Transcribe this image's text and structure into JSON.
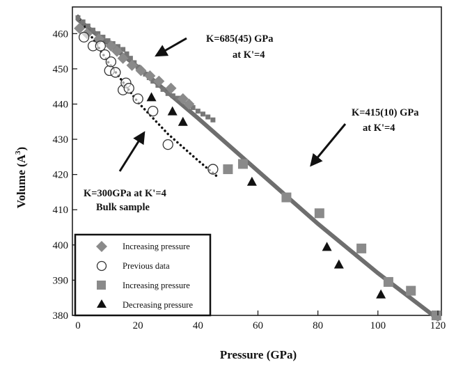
{
  "chart_data": {
    "type": "scatter",
    "xlabel": "Pressure (GPa)",
    "ylabel": "Volume (A",
    "ylabel_sup": "3",
    "ylabel_suffix": ")",
    "xlim": [
      0,
      120
    ],
    "ylim": [
      380,
      465
    ],
    "x_ticks": [
      0,
      20,
      40,
      60,
      80,
      100,
      120
    ],
    "y_ticks": [
      380,
      390,
      400,
      410,
      420,
      430,
      440,
      450,
      460
    ],
    "grid": false,
    "legend_position": "bottom-left",
    "series": [
      {
        "name": "Increasing pressure",
        "marker": "diamond",
        "color": "#8a8a8a",
        "points": [
          [
            0.5,
            461.5
          ],
          [
            3,
            460
          ],
          [
            7,
            458.5
          ],
          [
            11,
            456.5
          ],
          [
            13,
            455
          ],
          [
            15,
            453
          ],
          [
            18,
            451
          ],
          [
            21,
            449.5
          ],
          [
            24,
            448
          ],
          [
            27,
            446.5
          ],
          [
            31,
            444.5
          ],
          [
            35,
            441.5
          ],
          [
            37,
            440
          ]
        ]
      },
      {
        "name": "Previous data",
        "marker": "circle-open",
        "color": "#333333",
        "points": [
          [
            2,
            459
          ],
          [
            5,
            456.5
          ],
          [
            7.5,
            456.5
          ],
          [
            9,
            454
          ],
          [
            10.5,
            449.5
          ],
          [
            11,
            452
          ],
          [
            12.5,
            449
          ],
          [
            15,
            444
          ],
          [
            16,
            446
          ],
          [
            17,
            444.5
          ],
          [
            20,
            441.5
          ],
          [
            25,
            438
          ],
          [
            30,
            428.5
          ],
          [
            45,
            421.5
          ]
        ]
      },
      {
        "name": "Increasing pressure",
        "marker": "square",
        "color": "#8a8a8a",
        "points": [
          [
            50,
            421.5
          ],
          [
            55,
            423
          ],
          [
            69.5,
            413.5
          ],
          [
            80.5,
            409
          ],
          [
            94.5,
            399
          ],
          [
            103.5,
            389.5
          ],
          [
            111,
            387
          ],
          [
            119.5,
            380
          ]
        ]
      },
      {
        "name": "Decreasing pressure",
        "marker": "triangle",
        "color": "#111111",
        "points": [
          [
            24.5,
            442
          ],
          [
            31.5,
            438
          ],
          [
            35,
            435
          ],
          [
            58,
            418
          ],
          [
            83,
            399.5
          ],
          [
            87,
            394.5
          ],
          [
            101,
            386
          ]
        ]
      }
    ],
    "fits": [
      {
        "style": "solid-thick",
        "color": "#6e6e6e",
        "points": [
          [
            0,
            464
          ],
          [
            20,
            450.5
          ],
          [
            40,
            436
          ],
          [
            60,
            421
          ],
          [
            80,
            406
          ],
          [
            100,
            392
          ],
          [
            120,
            379
          ]
        ]
      },
      {
        "style": "dotted",
        "color": "#111111",
        "points": [
          [
            0,
            465
          ],
          [
            10,
            452
          ],
          [
            20,
            440.5
          ],
          [
            30,
            431.5
          ],
          [
            40,
            424
          ],
          [
            47,
            419
          ]
        ]
      },
      {
        "style": "dashed-squares",
        "color": "#777777",
        "points": [
          [
            0,
            464.5
          ],
          [
            5,
            461
          ],
          [
            10,
            458
          ],
          [
            15,
            455.5
          ],
          [
            20,
            450.5
          ],
          [
            25,
            446.5
          ],
          [
            30,
            443
          ],
          [
            35,
            441
          ],
          [
            40,
            438
          ],
          [
            45,
            435.5
          ],
          [
            47,
            435
          ]
        ]
      }
    ],
    "annotations": [
      {
        "lines": [
          "K=685(45) GPa",
          "at K'=4"
        ],
        "arrow": "left-down"
      },
      {
        "lines": [
          "K=415(10) GPa",
          "at K'=4"
        ],
        "arrow": "left-down"
      },
      {
        "lines": [
          "K=300GPa at K'=4",
          "Bulk sample"
        ],
        "arrow": "up-right"
      }
    ]
  }
}
